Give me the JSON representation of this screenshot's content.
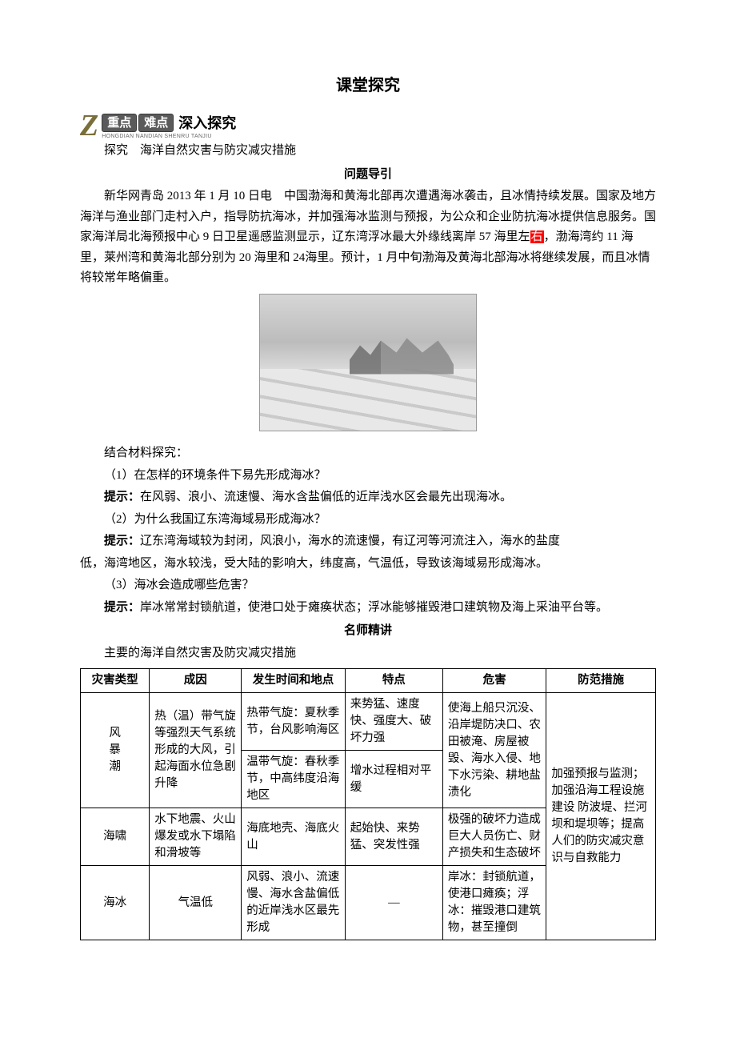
{
  "page": {
    "title": "课堂探究"
  },
  "banner": {
    "z": "Z",
    "pill1": "重点",
    "pill2": "难点",
    "bold": "深入探究",
    "pinyin": "HONGDIAN NANDIAN SHENRU TANJIU"
  },
  "topic_line": "探究　海洋自然灾害与防灾减灾措施",
  "guide_head": "问题导引",
  "news_text": "新华网青岛 2013 年 1 月 10 日电　中国渤海和黄海北部再次遭遇海冰袭击，且冰情持续发展。国家及地方海洋与渔业部门走村入户，指导防抗海冰，并加强海冰监测与预报，为公众和企业防抗海冰提供信息服务。国家海洋局北海预报中心 9 日卫星遥感监测显示，辽东湾浮冰最大外缘线离岸 57 海里左",
  "highlight_word": "右",
  "news_text_after": "，渤海湾约 11 海里，莱州湾和黄海北部分别为 20 海里和 24海里。预计，1 月中旬渤海及黄海北部海冰将继续发展，而且冰情将较常年略偏重。",
  "combine_line": "结合材料探究：",
  "q1": "（1）在怎样的环境条件下易先形成海冰？",
  "hint_label": "提示：",
  "a1": "在风弱、浪小、流速慢、海水含盐偏低的近岸浅水区会最先出现海冰。",
  "q2": "（2）为什么我国辽东湾海域易形成海冰？",
  "a2_line1": "辽东湾海域较为封闭，风浪小，海水的流速慢，有辽河等河流注入，海水的盐度",
  "a2_line2": "低，海湾地区，海水较浅，受大陆的影响大，纬度高，气温低，导致该海域易形成海冰。",
  "q3": "（3）海冰会造成哪些危害？",
  "a3": "岸冰常常封锁航道，使港口处于瘫痪状态；浮冰能够摧毁港口建筑物及海上采油平台等。",
  "lecture_head": "名师精讲",
  "table_title": "主要的海洋自然灾害及防灾减灾措施",
  "table": {
    "headers": [
      "灾害类型",
      "成因",
      "发生时间和地点",
      "特点",
      "危害",
      "防范措施"
    ],
    "rows": [
      {
        "type_stack": [
          "风",
          "暴",
          "潮"
        ],
        "cause": "热（温）带气旋等强烈天气系统形成的大风，引起海面水位急剧升降",
        "time": "热带气旋：夏秋季节，台风影响海区",
        "feat": "来势猛、速度快、强度大、破坏力强",
        "harm": "使海上船只沉没、沿岸堤防决口、农田被淹、房屋被毁、海水入侵、地下水污染、耕地盐渍化",
        "prev": "加强预报与监测；加强沿海工程设施建设 防波堤、拦河坝和堤坝等；提高人们的防灾减灾意识与自救能力"
      },
      {
        "time": "温带气旋：春秋季节，中高纬度沿海地区",
        "feat": "增水过程相对平缓"
      },
      {
        "type": "海啸",
        "cause": "水下地震、火山爆发或水下塌陷和滑坡等",
        "time": "海底地壳、海底火山",
        "feat": "起始快、来势猛、突发性强",
        "harm": "极强的破坏力造成巨大人员伤亡、财产损失和生态破坏"
      },
      {
        "type": "海冰",
        "cause": "气温低",
        "time": "风弱、浪小、流速慢、海水含盐偏低的近岸浅水区最先形成",
        "feat": "—",
        "harm": "岸冰：封锁航道，使港口瘫痪；浮冰：摧毁港口建筑物，甚至撞倒"
      }
    ]
  }
}
